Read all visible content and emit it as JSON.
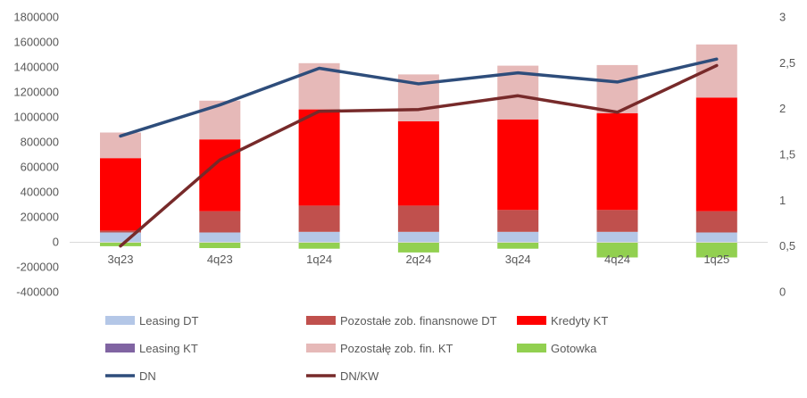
{
  "chart_data": {
    "type": "bar",
    "subtype": "stacked-bar-with-lines",
    "title": "",
    "xlabel": "",
    "ylabel": "",
    "categories": [
      "3q23",
      "4q23",
      "1q24",
      "2q24",
      "3q24",
      "4q24",
      "1q25"
    ],
    "ylim": [
      -400000,
      1800000
    ],
    "y_ticks": [
      "1800000",
      "1600000",
      "1400000",
      "1200000",
      "1000000",
      "800000",
      "600000",
      "400000",
      "200000",
      "0",
      "-200000",
      "-400000"
    ],
    "y2lim": [
      0,
      3
    ],
    "y2_ticks": [
      "3",
      "2,5",
      "2",
      "1,5",
      "1",
      "0,5",
      "0"
    ],
    "grid": false,
    "legend_position": "bottom",
    "series": [
      {
        "name": "Leasing DT",
        "kind": "bar",
        "axis": "left",
        "color": "#b4c7e7",
        "values": [
          75000,
          75000,
          80000,
          80000,
          80000,
          80000,
          75000
        ]
      },
      {
        "name": "Pozostałe zob. finansnowe DT",
        "kind": "bar",
        "axis": "left",
        "color": "#c0504d",
        "values": [
          15000,
          170000,
          210000,
          210000,
          175000,
          175000,
          170000
        ]
      },
      {
        "name": "Kredyty KT",
        "kind": "bar",
        "axis": "left",
        "color": "#ff0000",
        "values": [
          580000,
          575000,
          770000,
          675000,
          725000,
          775000,
          910000
        ]
      },
      {
        "name": "Leasing KT",
        "kind": "bar",
        "axis": "left",
        "color": "#8064a2",
        "values": [
          0,
          0,
          0,
          0,
          0,
          0,
          0
        ]
      },
      {
        "name": "Pozostałę zob. fin. KT",
        "kind": "bar",
        "axis": "left",
        "color": "#e6b9b8",
        "values": [
          205000,
          310000,
          370000,
          375000,
          430000,
          385000,
          425000
        ]
      },
      {
        "name": "Gotowka",
        "kind": "bar",
        "axis": "left",
        "color": "#92d050",
        "values": [
          -35000,
          -50000,
          -55000,
          -85000,
          -55000,
          -125000,
          -125000
        ]
      },
      {
        "name": "DN",
        "kind": "line",
        "axis": "right",
        "color": "#2e4d7b",
        "values": [
          1.7,
          2.04,
          2.44,
          2.27,
          2.39,
          2.29,
          2.54
        ]
      },
      {
        "name": "DN/KW",
        "kind": "line",
        "axis": "right",
        "color": "#772a2a",
        "values": [
          0.5,
          1.44,
          1.97,
          1.99,
          2.14,
          1.96,
          2.47
        ]
      }
    ]
  }
}
